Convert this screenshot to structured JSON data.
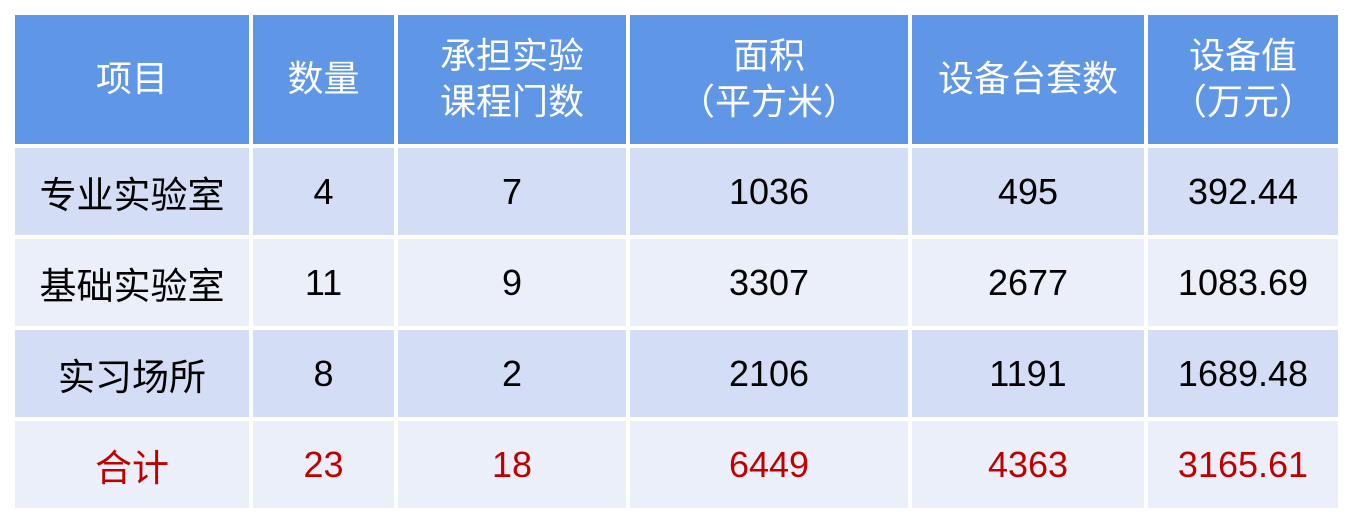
{
  "table": {
    "headers": [
      [
        "项目"
      ],
      [
        "数量"
      ],
      [
        "承担实验",
        "课程门数"
      ],
      [
        "面积",
        "（平方米）"
      ],
      [
        "设备台套数"
      ],
      [
        "设备值",
        "（万元）"
      ]
    ],
    "rows": [
      [
        "专业实验室",
        "4",
        "7",
        "1036",
        "495",
        "392.44"
      ],
      [
        "基础实验室",
        "11",
        "9",
        "3307",
        "2677",
        "1083.69"
      ],
      [
        "实习场所",
        "8",
        "2",
        "2106",
        "1191",
        "1689.48"
      ],
      [
        "合计",
        "23",
        "18",
        "6449",
        "4363",
        "3165.61"
      ]
    ]
  },
  "colors": {
    "header": "#5F97E6",
    "row_dark": "#D3DDF5",
    "row_light": "#EAEFF9",
    "total_text": "#C00000"
  }
}
